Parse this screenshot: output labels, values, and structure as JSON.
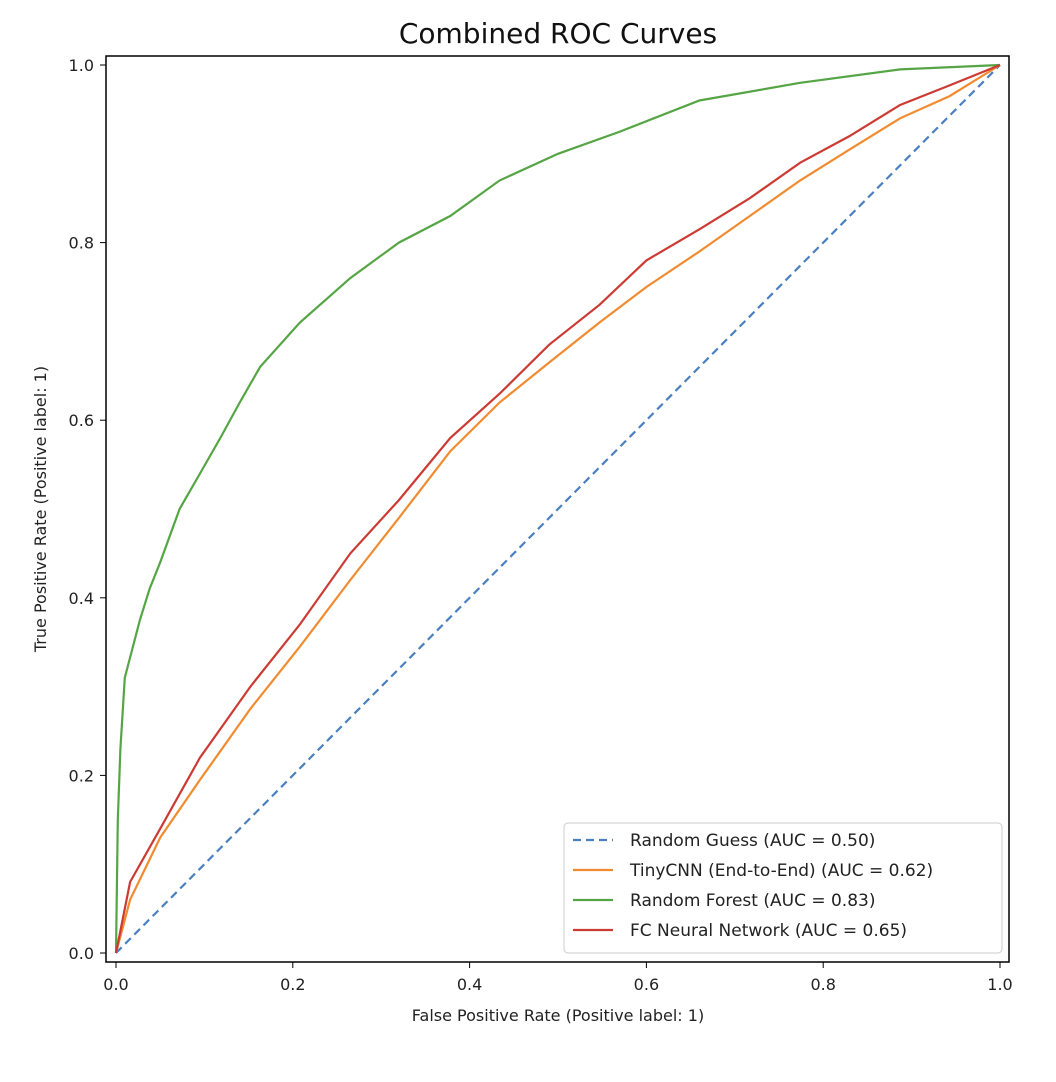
{
  "chart_data": {
    "type": "line",
    "title": "Combined ROC Curves",
    "xlabel": "False Positive Rate (Positive label: 1)",
    "ylabel": "True Positive Rate (Positive label: 1)",
    "xlim": [
      -0.01,
      1.01
    ],
    "ylim": [
      -0.01,
      1.01
    ],
    "xticks": [
      "0.0",
      "0.2",
      "0.4",
      "0.6",
      "0.8",
      "1.0"
    ],
    "yticks": [
      "0.0",
      "0.2",
      "0.4",
      "0.6",
      "0.8",
      "1.0"
    ],
    "grid": false,
    "legend_position": "lower-right",
    "series": [
      {
        "name": "Random Guess (AUC = 0.50)",
        "color": "#4a7fc0",
        "dash": true,
        "x": [
          0,
          1
        ],
        "y": [
          0,
          1
        ]
      },
      {
        "name": "TinyCNN (End-to-End) (AUC = 0.62)",
        "color": "#f28b2f",
        "dash": false,
        "x": [
          0,
          0.016,
          0.05,
          0.095,
          0.152,
          0.208,
          0.265,
          0.32,
          0.378,
          0.434,
          0.49,
          0.547,
          0.6,
          0.66,
          0.717,
          0.774,
          0.83,
          0.887,
          0.943,
          1
        ],
        "y": [
          0,
          0.06,
          0.13,
          0.195,
          0.275,
          0.345,
          0.42,
          0.49,
          0.565,
          0.62,
          0.665,
          0.71,
          0.75,
          0.79,
          0.83,
          0.87,
          0.905,
          0.94,
          0.965,
          1
        ]
      },
      {
        "name": "Random Forest (AUC = 0.83)",
        "color": "#55a545",
        "dash": false,
        "x": [
          0,
          0.002,
          0.005,
          0.01,
          0.027,
          0.038,
          0.05,
          0.072,
          0.095,
          0.118,
          0.14,
          0.163,
          0.208,
          0.265,
          0.32,
          0.378,
          0.434,
          0.5,
          0.57,
          0.66,
          0.774,
          0.887,
          1
        ],
        "y": [
          0,
          0.15,
          0.23,
          0.31,
          0.375,
          0.41,
          0.44,
          0.5,
          0.54,
          0.58,
          0.62,
          0.66,
          0.71,
          0.76,
          0.8,
          0.83,
          0.87,
          0.9,
          0.925,
          0.96,
          0.98,
          0.995,
          1
        ]
      },
      {
        "name": "FC Neural Network (AUC = 0.65)",
        "color": "#cc3b33",
        "dash": false,
        "x": [
          0,
          0.016,
          0.05,
          0.095,
          0.152,
          0.208,
          0.265,
          0.32,
          0.378,
          0.434,
          0.49,
          0.547,
          0.6,
          0.66,
          0.717,
          0.774,
          0.83,
          0.887,
          0.943,
          1
        ],
        "y": [
          0,
          0.08,
          0.14,
          0.22,
          0.3,
          0.37,
          0.45,
          0.51,
          0.58,
          0.63,
          0.685,
          0.73,
          0.78,
          0.815,
          0.85,
          0.89,
          0.92,
          0.955,
          0.977,
          1
        ]
      }
    ]
  }
}
